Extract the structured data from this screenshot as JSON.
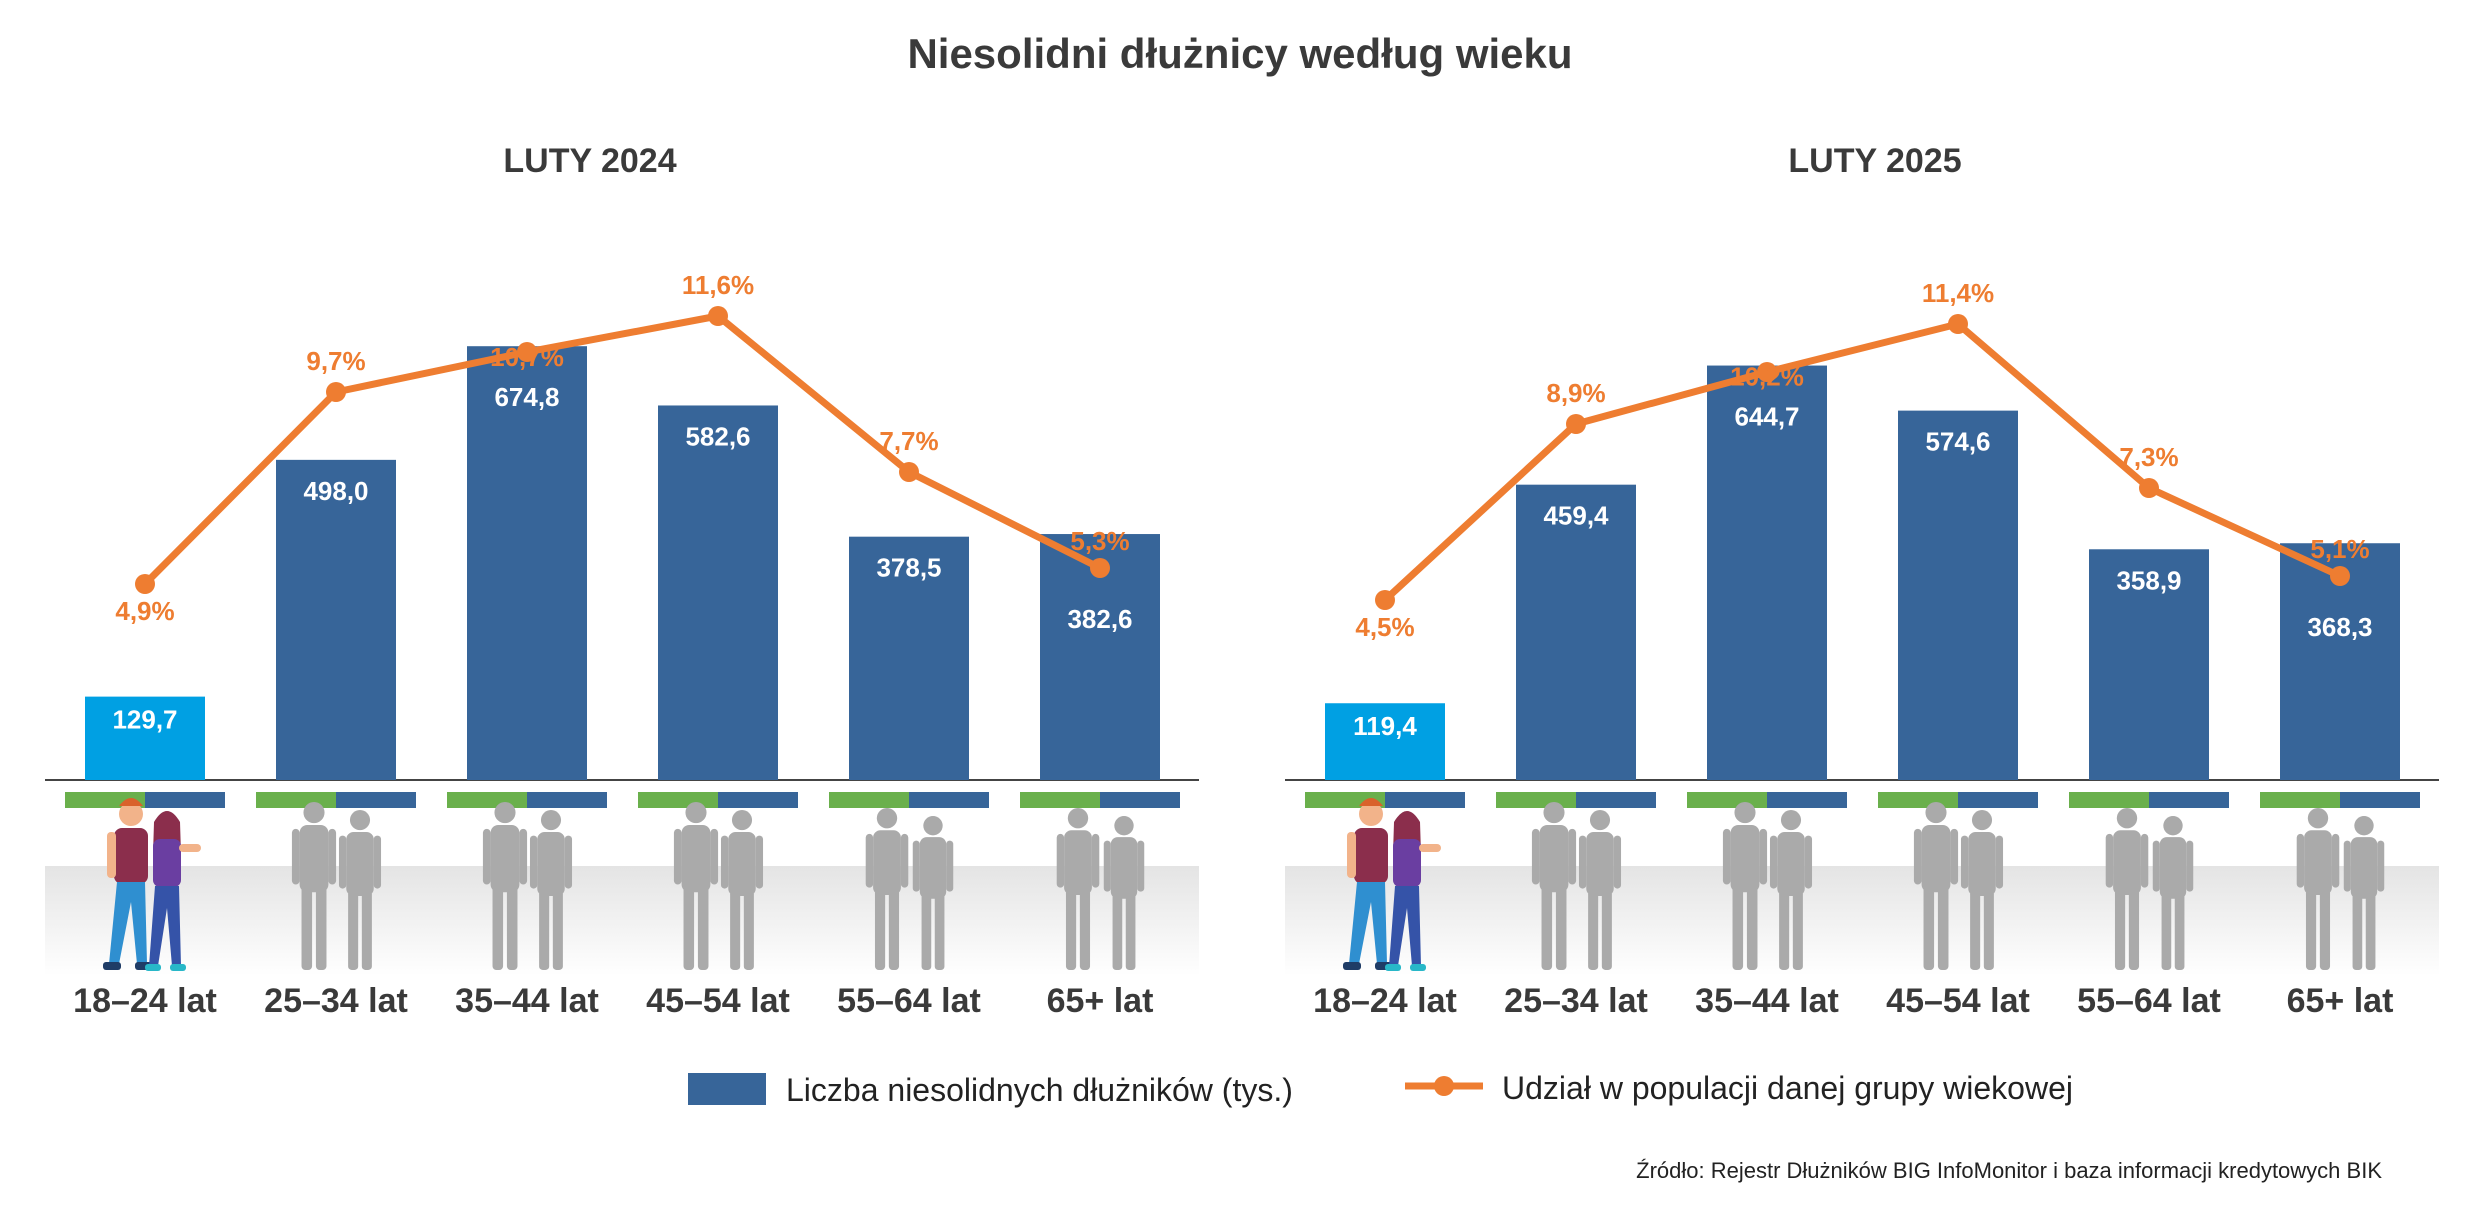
{
  "title": "Niesolidni dłużnicy według wieku",
  "legend": {
    "bars_label": "Liczba niesolidnych dłużników (tys.)",
    "line_label": "Udział w populacji danej grupy wiekowej"
  },
  "source": "Źródło: Rejestr Dłużników BIG InfoMonitor i baza informacji kredytowych BIK",
  "colors": {
    "bar": "#376599",
    "bar_highlight": "#00a0e3",
    "line": "#ee7d31",
    "green_strip": "#6ab04c",
    "silhouette": "#aaaaaa",
    "title": "#3a3a3a"
  },
  "icons": [
    "people-silhouette-icon",
    "couple-illustration-icon"
  ],
  "chart_data": [
    {
      "type": "bar",
      "title": "LUTY 2024",
      "categories": [
        "18–24 lat",
        "25–34 lat",
        "35–44 lat",
        "45–54 lat",
        "55–64 lat",
        "65+ lat"
      ],
      "series": [
        {
          "name": "Liczba niesolidnych dłużników (tys.)",
          "type": "bar",
          "values": [
            129.7,
            498.0,
            674.8,
            582.6,
            378.5,
            382.6
          ],
          "labels": [
            "129,7",
            "498,0",
            "674,8",
            "582,6",
            "378,5",
            "382,6"
          ]
        },
        {
          "name": "Udział w populacji danej grupy wiekowej",
          "type": "line",
          "values": [
            4.9,
            9.7,
            10.7,
            11.6,
            7.7,
            5.3
          ],
          "labels": [
            "4,9%",
            "9,7%",
            "10,7%",
            "11,6%",
            "7,7%",
            "5,3%"
          ]
        }
      ],
      "highlight_category": "18–24 lat"
    },
    {
      "type": "bar",
      "title": "LUTY 2025",
      "categories": [
        "18–24 lat",
        "25–34 lat",
        "35–44 lat",
        "45–54 lat",
        "55–64 lat",
        "65+ lat"
      ],
      "series": [
        {
          "name": "Liczba niesolidnych dłużników (tys.)",
          "type": "bar",
          "values": [
            119.4,
            459.4,
            644.7,
            574.6,
            358.9,
            368.3
          ],
          "labels": [
            "119,4",
            "459,4",
            "644,7",
            "574,6",
            "358,9",
            "368,3"
          ]
        },
        {
          "name": "Udział w populacji danej grupy wiekowej",
          "type": "line",
          "values": [
            4.5,
            8.9,
            10.2,
            11.4,
            7.3,
            5.1
          ],
          "labels": [
            "4,5%",
            "8,9%",
            "10,2%",
            "11,4%",
            "7,3%",
            "5,1%"
          ]
        }
      ],
      "highlight_category": "18–24 lat"
    }
  ]
}
